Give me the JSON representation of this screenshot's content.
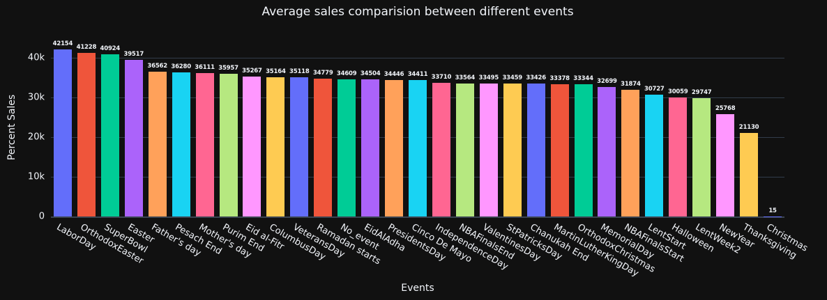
{
  "page": {
    "background": "#111111",
    "text_color": "#f2f5fa",
    "grid_color": "#323d4b",
    "zero_line_color": "#3b4552"
  },
  "chart_data": {
    "type": "bar",
    "title": "Average sales comparision between different events",
    "xlabel": "Events",
    "ylabel": "Percent Sales",
    "categories": [
      "LaborDay",
      "OrthodoxEaster",
      "SuperBowl",
      "Easter",
      "Father's day",
      "Pesach End",
      "Mother's day",
      "Purim End",
      "Eid al-Fitr",
      "ColumbusDay",
      "VeteransDay",
      "Ramadan starts",
      "No_event",
      "EidAlAdha",
      "PresidentsDay",
      "Cinco De Mayo",
      "IndependenceDay",
      "NBAFinalsEnd",
      "ValentinesDay",
      "StPatricksDay",
      "Chanukah End",
      "MartinLutherKingDay",
      "OrthodoxChristmas",
      "MemorialDay",
      "NBAFinalsStart",
      "LentStart",
      "Halloween",
      "LentWeek2",
      "NewYear",
      "Thanksgiving",
      "Christmas"
    ],
    "values": [
      42154,
      41228,
      40924,
      39517,
      36562,
      36280,
      36111,
      35957,
      35267,
      35164,
      35118,
      34779,
      34609,
      34504,
      34446,
      34411,
      33710,
      33564,
      33495,
      33459,
      33426,
      33378,
      33344,
      32699,
      31874,
      30727,
      30059,
      29747,
      25768,
      21130,
      15
    ],
    "value_labels_visible": true,
    "ylim": [
      0,
      44900
    ],
    "ytick_values": [
      0,
      10000,
      20000,
      30000,
      40000
    ],
    "ytick_labels": [
      "0",
      "10k",
      "20k",
      "30k",
      "40k"
    ],
    "xtick_angle_deg": 30,
    "grid": true,
    "legend_position": "none",
    "palette": [
      "#636EFA",
      "#EF553B",
      "#00CC96",
      "#AB63FA",
      "#FFA15A",
      "#19D3F3",
      "#FF6692",
      "#B6E880",
      "#FF97FF",
      "#FECB52"
    ]
  }
}
